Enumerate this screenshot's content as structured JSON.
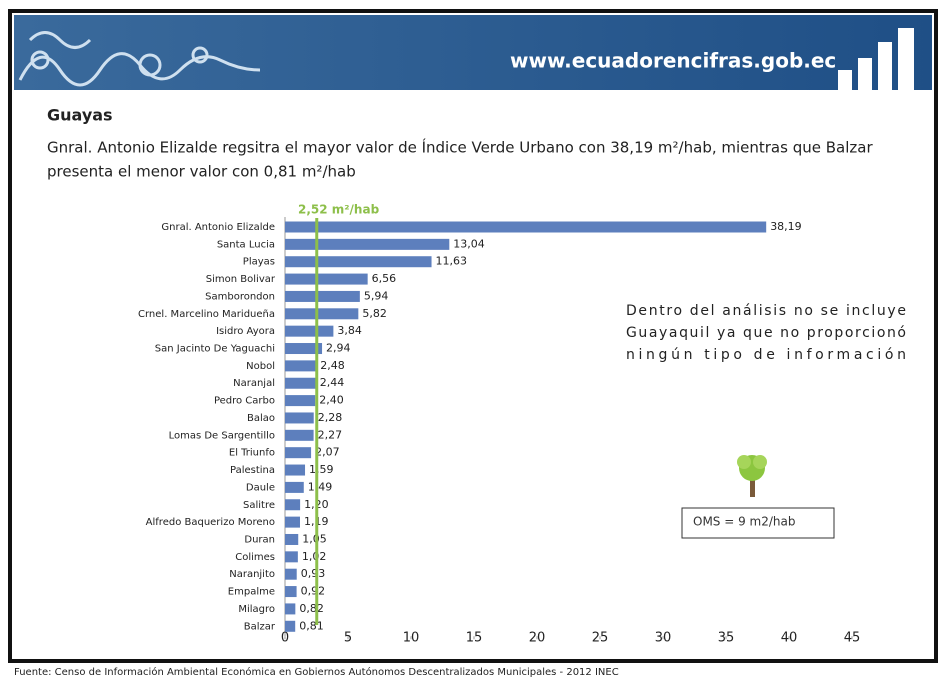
{
  "header": {
    "site": "www.ecuadorencifras.gob.ec"
  },
  "chart_data": {
    "type": "barh",
    "title": "Guayas",
    "subtitle_lines": [
      "Gnral. Antonio Elizalde regsitra el mayor valor de Índice Verde Urbano con 38,19 m²/hab, mientras que Balzar",
      "presenta el menor valor con 0,81 m²/hab"
    ],
    "categories": [
      "Gnral. Antonio Elizalde",
      "Santa Lucia",
      "Playas",
      "Simon Bolivar",
      "Samborondon",
      "Crnel. Marcelino Maridueña",
      "Isidro Ayora",
      "San Jacinto De Yaguachi",
      "Nobol",
      "Naranjal",
      "Pedro Carbo",
      "Balao",
      "Lomas De Sargentillo",
      "El Triunfo",
      "Palestina",
      "Daule",
      "Salitre",
      "Alfredo Baquerizo Moreno",
      "Duran",
      "Colimes",
      "Naranjito",
      "Empalme",
      "Milagro",
      "Balzar"
    ],
    "values": [
      38.19,
      13.04,
      11.63,
      6.56,
      5.94,
      5.82,
      3.84,
      2.94,
      2.48,
      2.44,
      2.4,
      2.28,
      2.27,
      2.07,
      1.59,
      1.49,
      1.2,
      1.19,
      1.05,
      1.02,
      0.93,
      0.92,
      0.82,
      0.81
    ],
    "value_labels": [
      "38,19",
      "13,04",
      "11,63",
      "6,56",
      "5,94",
      "5,82",
      "3,84",
      "2,94",
      "2,48",
      "2,44",
      "2,40",
      "2,28",
      "2,27",
      "2,07",
      "1,59",
      "1,49",
      "1,20",
      "1,19",
      "1,05",
      "1,02",
      "0,93",
      "0,92",
      "0,82",
      "0,81"
    ],
    "color": "#5d7fbd",
    "xlim": [
      0,
      45
    ],
    "xticks": [
      0,
      5,
      10,
      15,
      20,
      25,
      30,
      35,
      40,
      45
    ],
    "reference_line": {
      "value": 2.52,
      "label": "2,52 m²/hab",
      "color": "#8dbf4a"
    },
    "annotation_lines": [
      "Dentro del análisis no se incluye",
      "Guayaquil ya que no proporcionó",
      "ningún tipo de información"
    ],
    "box_note": "OMS = 9 m2/hab",
    "source": "Fuente: Censo de Información Ambiental Económica en Gobiernos Autónomos Descentralizados Municipales - 2012 INEC"
  }
}
